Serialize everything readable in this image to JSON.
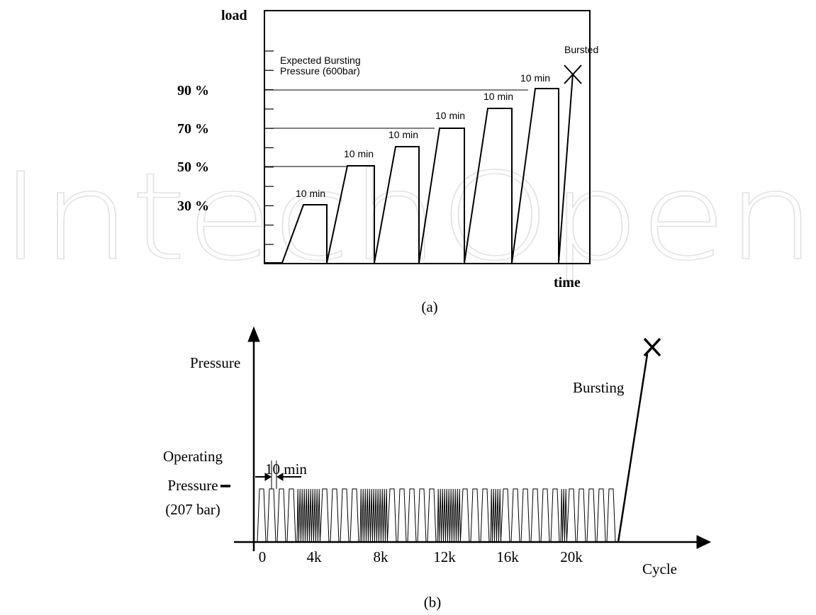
{
  "watermark": "IntechOpen",
  "panel_a": {
    "y_axis_label": "load",
    "x_axis_label": "time",
    "y_labels": [
      "90 %",
      "70 %",
      "50 %",
      "30 %"
    ],
    "annotation": [
      "Expected Bursting",
      "Pressure (600bar)"
    ],
    "step_labels": [
      "10 min",
      "10 min",
      "10 min",
      "10 min",
      "10 min",
      "10 min"
    ],
    "burst_label": "Bursted",
    "caption": "(a)"
  },
  "panel_b": {
    "y_axis_label": "Pressure",
    "x_axis_label": "Cycle",
    "x_labels": [
      "0",
      "4k",
      "8k",
      "12k",
      "16k",
      "20k"
    ],
    "burst_label": "Bursting",
    "interval_label": "10 min",
    "operating_pressure": [
      "Operating",
      "Pressure",
      "(207 bar)"
    ],
    "caption": "(b)"
  }
}
